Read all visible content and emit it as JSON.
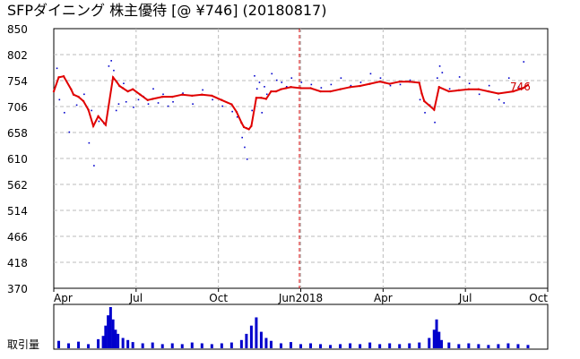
{
  "title": "SFPダイニング 株主優待 [@ ¥746] (20180817)",
  "colors": {
    "price": "#e00000",
    "trades": "#0000cc",
    "volume": "#0000cc",
    "grid": "#bbbbbb",
    "marker": "#cc0000"
  },
  "chart_data": {
    "type": "line",
    "title": "SFPダイニング 株主優待 [@ ¥746] (20180817)",
    "ylim": [
      370,
      850
    ],
    "y_ticks": [
      "850",
      "802",
      "754",
      "706",
      "658",
      "610",
      "562",
      "514",
      "466",
      "418",
      "370"
    ],
    "x_ticks": [
      "Apr",
      "Jul",
      "Oct",
      "Jun2018",
      "Apr",
      "Jul",
      "Oct"
    ],
    "grid": true,
    "last_value_label": "746",
    "volume_label": "取引量",
    "series": [
      {
        "name": "price",
        "style": "red line",
        "x": [
          0,
          0.01,
          0.02,
          0.035,
          0.04,
          0.05,
          0.06,
          0.07,
          0.08,
          0.09,
          0.105,
          0.12,
          0.127,
          0.133,
          0.14,
          0.15,
          0.16,
          0.175,
          0.19,
          0.2,
          0.22,
          0.24,
          0.26,
          0.28,
          0.3,
          0.32,
          0.34,
          0.36,
          0.37,
          0.38,
          0.385,
          0.39,
          0.395,
          0.4,
          0.41,
          0.42,
          0.43,
          0.44,
          0.45,
          0.46,
          0.47,
          0.48,
          0.5,
          0.52,
          0.54,
          0.56,
          0.58,
          0.6,
          0.62,
          0.64,
          0.66,
          0.67,
          0.68,
          0.7,
          0.72,
          0.74,
          0.745,
          0.75,
          0.76,
          0.77,
          0.78,
          0.8,
          0.82,
          0.84,
          0.86,
          0.88,
          0.9,
          0.93,
          0.95,
          0.96
        ],
        "values": [
          734,
          760,
          762,
          738,
          728,
          724,
          716,
          700,
          670,
          688,
          672,
          760,
          752,
          744,
          740,
          734,
          738,
          728,
          718,
          720,
          724,
          724,
          728,
          726,
          728,
          726,
          718,
          710,
          696,
          676,
          668,
          666,
          664,
          670,
          722,
          722,
          720,
          734,
          734,
          738,
          740,
          742,
          740,
          740,
          734,
          734,
          738,
          742,
          744,
          748,
          752,
          750,
          748,
          752,
          752,
          750,
          730,
          716,
          708,
          700,
          742,
          734,
          736,
          738,
          738,
          734,
          730,
          734,
          740,
          746
        ]
      },
      {
        "name": "trades",
        "style": "blue dots",
        "x": [
          0.005,
          0.01,
          0.02,
          0.03,
          0.045,
          0.06,
          0.07,
          0.075,
          0.08,
          0.09,
          0.1,
          0.11,
          0.115,
          0.12,
          0.125,
          0.13,
          0.14,
          0.145,
          0.15,
          0.16,
          0.17,
          0.18,
          0.19,
          0.2,
          0.21,
          0.22,
          0.23,
          0.24,
          0.26,
          0.28,
          0.3,
          0.32,
          0.34,
          0.36,
          0.37,
          0.38,
          0.385,
          0.39,
          0.4,
          0.405,
          0.41,
          0.415,
          0.42,
          0.425,
          0.43,
          0.44,
          0.45,
          0.46,
          0.47,
          0.48,
          0.5,
          0.52,
          0.54,
          0.56,
          0.58,
          0.6,
          0.62,
          0.64,
          0.66,
          0.68,
          0.7,
          0.72,
          0.74,
          0.75,
          0.76,
          0.77,
          0.775,
          0.78,
          0.785,
          0.8,
          0.82,
          0.84,
          0.86,
          0.88,
          0.9,
          0.91,
          0.92,
          0.94,
          0.95
        ],
        "values": [
          778,
          720,
          696,
          660,
          710,
          730,
          640,
          700,
          598,
          680,
          676,
          782,
          792,
          774,
          700,
          712,
          750,
          716,
          736,
          706,
          720,
          726,
          712,
          740,
          714,
          730,
          708,
          716,
          732,
          712,
          738,
          720,
          708,
          698,
          688,
          650,
          632,
          610,
          700,
          764,
          740,
          752,
          696,
          744,
          730,
          768,
          756,
          752,
          744,
          760,
          752,
          748,
          742,
          748,
          760,
          746,
          752,
          768,
          760,
          746,
          748,
          756,
          720,
          696,
          710,
          678,
          760,
          782,
          770,
          740,
          762,
          750,
          730,
          746,
          720,
          714,
          760,
          744,
          790
        ]
      }
    ],
    "volume": {
      "label": "取引量",
      "x": [
        0.01,
        0.03,
        0.05,
        0.07,
        0.09,
        0.1,
        0.105,
        0.11,
        0.115,
        0.12,
        0.125,
        0.13,
        0.14,
        0.15,
        0.16,
        0.18,
        0.2,
        0.22,
        0.24,
        0.26,
        0.28,
        0.3,
        0.32,
        0.34,
        0.36,
        0.38,
        0.39,
        0.4,
        0.41,
        0.42,
        0.43,
        0.44,
        0.46,
        0.48,
        0.5,
        0.52,
        0.54,
        0.56,
        0.58,
        0.6,
        0.62,
        0.64,
        0.66,
        0.68,
        0.7,
        0.72,
        0.74,
        0.76,
        0.77,
        0.775,
        0.78,
        0.785,
        0.8,
        0.82,
        0.84,
        0.86,
        0.88,
        0.9,
        0.92,
        0.94,
        0.96
      ],
      "values": [
        0.18,
        0.12,
        0.16,
        0.1,
        0.22,
        0.3,
        0.55,
        0.8,
        1.0,
        0.7,
        0.45,
        0.35,
        0.25,
        0.2,
        0.15,
        0.12,
        0.14,
        0.1,
        0.12,
        0.1,
        0.14,
        0.12,
        0.1,
        0.12,
        0.14,
        0.2,
        0.35,
        0.55,
        0.75,
        0.4,
        0.25,
        0.18,
        0.12,
        0.15,
        0.1,
        0.12,
        0.1,
        0.08,
        0.1,
        0.12,
        0.1,
        0.14,
        0.1,
        0.12,
        0.1,
        0.12,
        0.14,
        0.25,
        0.45,
        0.7,
        0.4,
        0.2,
        0.14,
        0.1,
        0.12,
        0.1,
        0.08,
        0.1,
        0.12,
        0.1,
        0.08
      ]
    }
  }
}
